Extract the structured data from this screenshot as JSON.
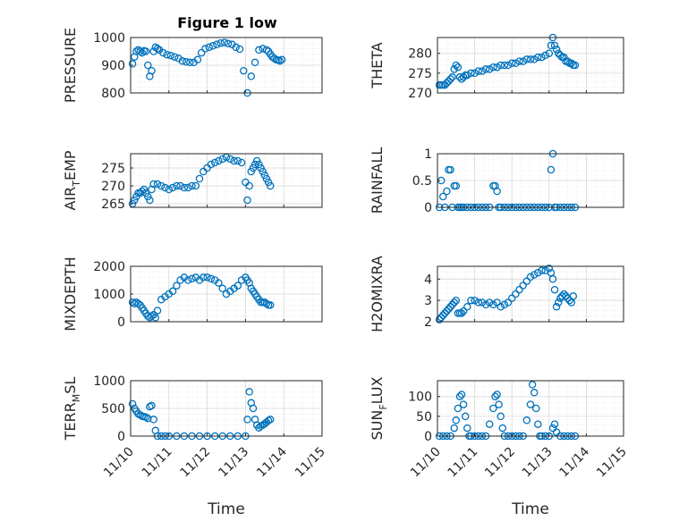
{
  "figure": {
    "title": "Figure 1 low"
  },
  "x_time_labels": [
    "11/10",
    "11/11",
    "11/12",
    "11/13",
    "11/14",
    "11/15"
  ],
  "chart_data": [
    {
      "type": "scatter",
      "ylabel": "PRESSURE",
      "xlabel": "",
      "title": "Figure 1 low",
      "xlim": [
        0,
        5
      ],
      "ylim": [
        800,
        1000
      ],
      "yticks": [
        800,
        900,
        1000
      ],
      "grid": true,
      "series": [
        {
          "x": [
            0.05,
            0.1,
            0.15,
            0.2,
            0.25,
            0.3,
            0.35,
            0.4,
            0.45,
            0.5,
            0.55,
            0.6,
            0.65,
            0.7,
            0.75,
            0.85,
            0.95,
            1.05,
            1.15,
            1.25,
            1.35,
            1.45,
            1.55,
            1.65,
            1.75,
            1.85,
            1.95,
            2.05,
            2.15,
            2.25,
            2.35,
            2.45,
            2.55,
            2.65,
            2.75,
            2.85,
            2.95,
            3.05,
            3.15,
            3.25,
            3.35,
            3.45,
            3.55,
            3.6,
            3.65,
            3.7,
            3.75,
            3.8,
            3.85,
            3.9,
            3.95
          ],
          "y": [
            905,
            930,
            950,
            955,
            950,
            945,
            952,
            950,
            900,
            860,
            880,
            950,
            965,
            960,
            955,
            945,
            938,
            935,
            930,
            925,
            915,
            912,
            910,
            910,
            920,
            945,
            960,
            965,
            970,
            975,
            980,
            982,
            978,
            975,
            965,
            958,
            880,
            800,
            860,
            910,
            955,
            960,
            955,
            950,
            940,
            930,
            925,
            920,
            918,
            915,
            920
          ]
        }
      ]
    },
    {
      "type": "scatter",
      "ylabel": "THETA",
      "xlim": [
        0,
        5
      ],
      "ylim": [
        270,
        284
      ],
      "yticks": [
        270,
        275,
        280
      ],
      "grid": true,
      "series": [
        {
          "x": [
            0.05,
            0.1,
            0.15,
            0.2,
            0.25,
            0.3,
            0.35,
            0.4,
            0.45,
            0.5,
            0.55,
            0.6,
            0.65,
            0.7,
            0.75,
            0.8,
            0.9,
            1.0,
            1.1,
            1.2,
            1.3,
            1.4,
            1.5,
            1.6,
            1.7,
            1.8,
            1.9,
            2.0,
            2.1,
            2.2,
            2.3,
            2.4,
            2.5,
            2.6,
            2.7,
            2.8,
            2.9,
            3.0,
            3.05,
            3.1,
            3.15,
            3.2,
            3.25,
            3.3,
            3.35,
            3.4,
            3.45,
            3.5,
            3.55,
            3.6,
            3.65,
            3.7
          ],
          "y": [
            272,
            272,
            272,
            272,
            272.5,
            273,
            273.5,
            274,
            276,
            277,
            276.5,
            274,
            273.5,
            274,
            274.5,
            274.5,
            275,
            275,
            275.5,
            275.5,
            276,
            276,
            276.5,
            276.5,
            277,
            277,
            277,
            277.5,
            277.5,
            278,
            278,
            278.5,
            278.5,
            278.5,
            279,
            279,
            279.5,
            280,
            282,
            284,
            282,
            281,
            280,
            279.5,
            279,
            279,
            278,
            278,
            277.5,
            277.5,
            277,
            277
          ]
        }
      ]
    },
    {
      "type": "scatter",
      "ylabel": "AIR_TEMP",
      "xlim": [
        0,
        5
      ],
      "ylim": [
        264,
        279
      ],
      "yticks": [
        265,
        270,
        275
      ],
      "grid": true,
      "series": [
        {
          "x": [
            0.05,
            0.1,
            0.15,
            0.2,
            0.25,
            0.3,
            0.35,
            0.4,
            0.45,
            0.5,
            0.55,
            0.6,
            0.7,
            0.8,
            0.9,
            1.0,
            1.1,
            1.2,
            1.3,
            1.4,
            1.5,
            1.6,
            1.7,
            1.8,
            1.9,
            2.0,
            2.1,
            2.2,
            2.3,
            2.4,
            2.5,
            2.6,
            2.7,
            2.8,
            2.9,
            3.0,
            3.05,
            3.1,
            3.15,
            3.2,
            3.25,
            3.3,
            3.35,
            3.4,
            3.45,
            3.5,
            3.55,
            3.6,
            3.65
          ],
          "y": [
            265,
            266,
            267,
            268,
            268,
            268.5,
            269,
            268,
            267,
            266,
            269,
            270.5,
            270.5,
            270,
            269.5,
            269,
            269.5,
            270,
            270,
            269.5,
            269.5,
            270,
            270,
            272,
            274,
            275,
            276,
            276.5,
            277,
            277.5,
            278,
            277.5,
            277,
            277,
            276.5,
            271,
            266,
            270,
            274,
            275,
            276,
            277,
            276,
            275,
            274,
            273,
            272,
            271,
            270
          ]
        }
      ]
    },
    {
      "type": "scatter",
      "ylabel": "RAINFALL",
      "xlim": [
        0,
        5
      ],
      "ylim": [
        0,
        1
      ],
      "yticks": [
        0,
        0.5,
        1
      ],
      "grid": true,
      "series": [
        {
          "x": [
            0.05,
            0.1,
            0.15,
            0.2,
            0.25,
            0.3,
            0.35,
            0.4,
            0.45,
            0.5,
            0.55,
            0.6,
            0.65,
            0.7,
            0.8,
            0.9,
            1.0,
            1.1,
            1.2,
            1.3,
            1.4,
            1.5,
            1.55,
            1.6,
            1.65,
            1.7,
            1.8,
            1.9,
            2.0,
            2.1,
            2.2,
            2.3,
            2.4,
            2.5,
            2.6,
            2.7,
            2.8,
            2.9,
            3.0,
            3.05,
            3.1,
            3.15,
            3.2,
            3.3,
            3.4,
            3.5,
            3.6,
            3.7
          ],
          "y": [
            0,
            0.5,
            0.2,
            0,
            0.3,
            0.7,
            0.7,
            0,
            0.4,
            0.4,
            0,
            0,
            0,
            0,
            0,
            0,
            0,
            0,
            0,
            0,
            0,
            0.4,
            0.4,
            0.3,
            0,
            0,
            0,
            0,
            0,
            0,
            0,
            0,
            0,
            0,
            0,
            0,
            0,
            0,
            0,
            0.7,
            1.0,
            0,
            0,
            0,
            0,
            0,
            0,
            0
          ]
        }
      ]
    },
    {
      "type": "scatter",
      "ylabel": "MIXDEPTH",
      "xlim": [
        0,
        5
      ],
      "ylim": [
        0,
        2000
      ],
      "yticks": [
        0,
        1000,
        2000
      ],
      "grid": true,
      "series": [
        {
          "x": [
            0.05,
            0.1,
            0.15,
            0.2,
            0.25,
            0.3,
            0.35,
            0.4,
            0.45,
            0.5,
            0.55,
            0.6,
            0.65,
            0.7,
            0.8,
            0.9,
            1.0,
            1.1,
            1.2,
            1.3,
            1.4,
            1.5,
            1.6,
            1.7,
            1.8,
            1.9,
            2.0,
            2.1,
            2.2,
            2.3,
            2.4,
            2.5,
            2.6,
            2.7,
            2.8,
            2.9,
            3.0,
            3.05,
            3.1,
            3.15,
            3.2,
            3.25,
            3.3,
            3.35,
            3.4,
            3.45,
            3.5,
            3.55,
            3.6,
            3.65
          ],
          "y": [
            700,
            650,
            700,
            650,
            600,
            500,
            400,
            300,
            200,
            150,
            200,
            250,
            150,
            400,
            800,
            900,
            1000,
            1100,
            1300,
            1500,
            1600,
            1500,
            1550,
            1600,
            1500,
            1600,
            1600,
            1550,
            1500,
            1400,
            1200,
            1000,
            1100,
            1200,
            1300,
            1500,
            1600,
            1500,
            1400,
            1200,
            1100,
            1000,
            900,
            800,
            700,
            700,
            700,
            650,
            600,
            600
          ]
        }
      ]
    },
    {
      "type": "scatter",
      "ylabel": "H2OMIXRA",
      "xlim": [
        0,
        5
      ],
      "ylim": [
        2,
        4.6
      ],
      "yticks": [
        2,
        3,
        4
      ],
      "grid": true,
      "series": [
        {
          "x": [
            0.05,
            0.1,
            0.15,
            0.2,
            0.25,
            0.3,
            0.35,
            0.4,
            0.45,
            0.5,
            0.55,
            0.6,
            0.65,
            0.7,
            0.8,
            0.9,
            1.0,
            1.1,
            1.2,
            1.3,
            1.4,
            1.5,
            1.6,
            1.7,
            1.8,
            1.9,
            2.0,
            2.1,
            2.2,
            2.3,
            2.4,
            2.5,
            2.6,
            2.7,
            2.8,
            2.9,
            3.0,
            3.05,
            3.1,
            3.15,
            3.2,
            3.25,
            3.3,
            3.35,
            3.4,
            3.45,
            3.5,
            3.55,
            3.6,
            3.65
          ],
          "y": [
            2.1,
            2.2,
            2.3,
            2.4,
            2.5,
            2.6,
            2.7,
            2.8,
            2.9,
            3.0,
            2.4,
            2.4,
            2.4,
            2.5,
            2.7,
            3.0,
            3.0,
            2.9,
            2.9,
            2.8,
            2.9,
            2.8,
            2.9,
            2.7,
            2.8,
            2.9,
            3.1,
            3.3,
            3.5,
            3.7,
            3.9,
            4.1,
            4.2,
            4.3,
            4.4,
            4.4,
            4.5,
            4.3,
            4.0,
            3.5,
            2.7,
            2.9,
            3.1,
            3.2,
            3.3,
            3.2,
            3.1,
            3.0,
            2.9,
            3.2
          ]
        }
      ]
    },
    {
      "type": "scatter",
      "ylabel": "TERR_MSL",
      "xlim": [
        0,
        5
      ],
      "ylim": [
        0,
        1000
      ],
      "yticks": [
        0,
        500,
        1000
      ],
      "grid": true,
      "series": [
        {
          "x": [
            0.05,
            0.1,
            0.15,
            0.2,
            0.25,
            0.3,
            0.35,
            0.4,
            0.45,
            0.5,
            0.55,
            0.6,
            0.65,
            0.7,
            0.8,
            0.9,
            1.0,
            1.2,
            1.4,
            1.6,
            1.8,
            2.0,
            2.2,
            2.4,
            2.6,
            2.8,
            3.0,
            3.05,
            3.1,
            3.15,
            3.2,
            3.25,
            3.3,
            3.35,
            3.4,
            3.45,
            3.5,
            3.55,
            3.6,
            3.65
          ],
          "y": [
            580,
            500,
            450,
            400,
            380,
            360,
            350,
            340,
            320,
            530,
            550,
            300,
            100,
            0,
            0,
            0,
            0,
            0,
            0,
            0,
            0,
            0,
            0,
            0,
            0,
            0,
            0,
            300,
            800,
            600,
            500,
            300,
            200,
            150,
            180,
            200,
            220,
            250,
            280,
            300
          ]
        }
      ]
    },
    {
      "type": "scatter",
      "ylabel": "SUN_FLUX",
      "xlim": [
        0,
        5
      ],
      "ylim": [
        0,
        140
      ],
      "yticks": [
        0,
        50,
        100
      ],
      "grid": true,
      "series": [
        {
          "x": [
            0.05,
            0.15,
            0.25,
            0.35,
            0.45,
            0.5,
            0.55,
            0.6,
            0.65,
            0.7,
            0.75,
            0.8,
            0.85,
            0.9,
            1.0,
            1.1,
            1.2,
            1.3,
            1.4,
            1.5,
            1.55,
            1.6,
            1.65,
            1.7,
            1.75,
            1.8,
            1.9,
            2.0,
            2.1,
            2.2,
            2.3,
            2.4,
            2.5,
            2.55,
            2.6,
            2.65,
            2.7,
            2.75,
            2.8,
            2.9,
            3.0,
            3.1,
            3.15,
            3.2,
            3.3,
            3.4,
            3.5,
            3.6,
            3.7
          ],
          "y": [
            0,
            0,
            0,
            0,
            20,
            40,
            70,
            100,
            105,
            80,
            50,
            20,
            0,
            0,
            0,
            0,
            0,
            0,
            30,
            70,
            100,
            105,
            80,
            50,
            20,
            0,
            0,
            0,
            0,
            0,
            0,
            40,
            80,
            130,
            110,
            70,
            30,
            0,
            0,
            0,
            0,
            20,
            30,
            10,
            0,
            0,
            0,
            0,
            0
          ]
        }
      ]
    }
  ]
}
